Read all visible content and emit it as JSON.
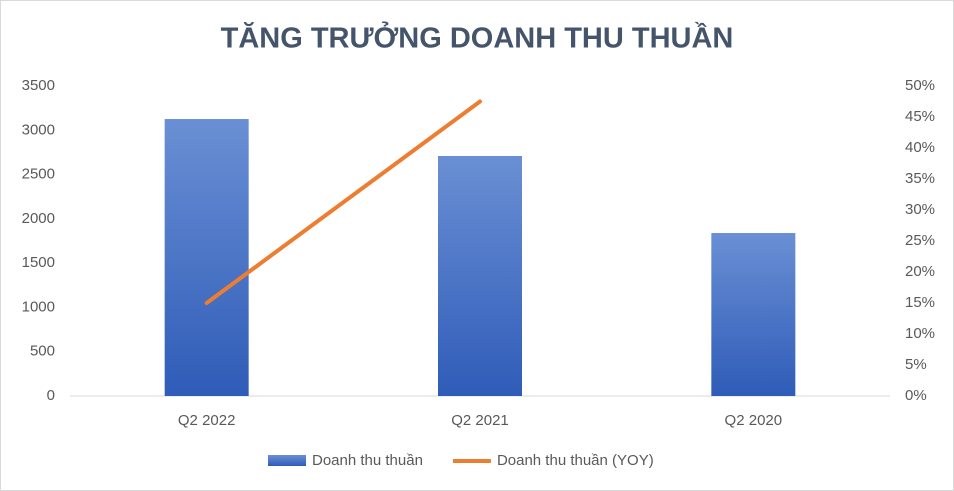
{
  "chart_data": {
    "type": "bar",
    "title": "TĂNG TRƯỞNG DOANH THU THUẦN",
    "categories": [
      "Q2 2022",
      "Q2 2021",
      "Q2 2020"
    ],
    "series": [
      {
        "name": "Doanh thu thuần",
        "color": "#4472c4",
        "values": [
          3127,
          2710,
          1840
        ]
      },
      {
        "name": "Doanh thu thuần (YOY)",
        "color": "#ed7d31",
        "type": "line",
        "axis": "y2",
        "values": [
          15,
          47.5,
          null
        ]
      }
    ],
    "ylim": [
      0,
      3500
    ],
    "yticks": [
      0,
      500,
      1000,
      1500,
      2000,
      2500,
      3000,
      3500
    ],
    "y2lim": [
      0,
      50
    ],
    "y2ticks": [
      {
        "value": 0,
        "label": "0%"
      },
      {
        "value": 5,
        "label": "5%"
      },
      {
        "value": 10,
        "label": "10%"
      },
      {
        "value": 15,
        "label": "15%"
      },
      {
        "value": 20,
        "label": "20%"
      },
      {
        "value": 25,
        "label": "25%"
      },
      {
        "value": 30,
        "label": "30%"
      },
      {
        "value": 35,
        "label": "35%"
      },
      {
        "value": 40,
        "label": "40%"
      },
      {
        "value": 45,
        "label": "45%"
      },
      {
        "value": 50,
        "label": "50%"
      }
    ],
    "grid": false,
    "legend": "bottom"
  }
}
